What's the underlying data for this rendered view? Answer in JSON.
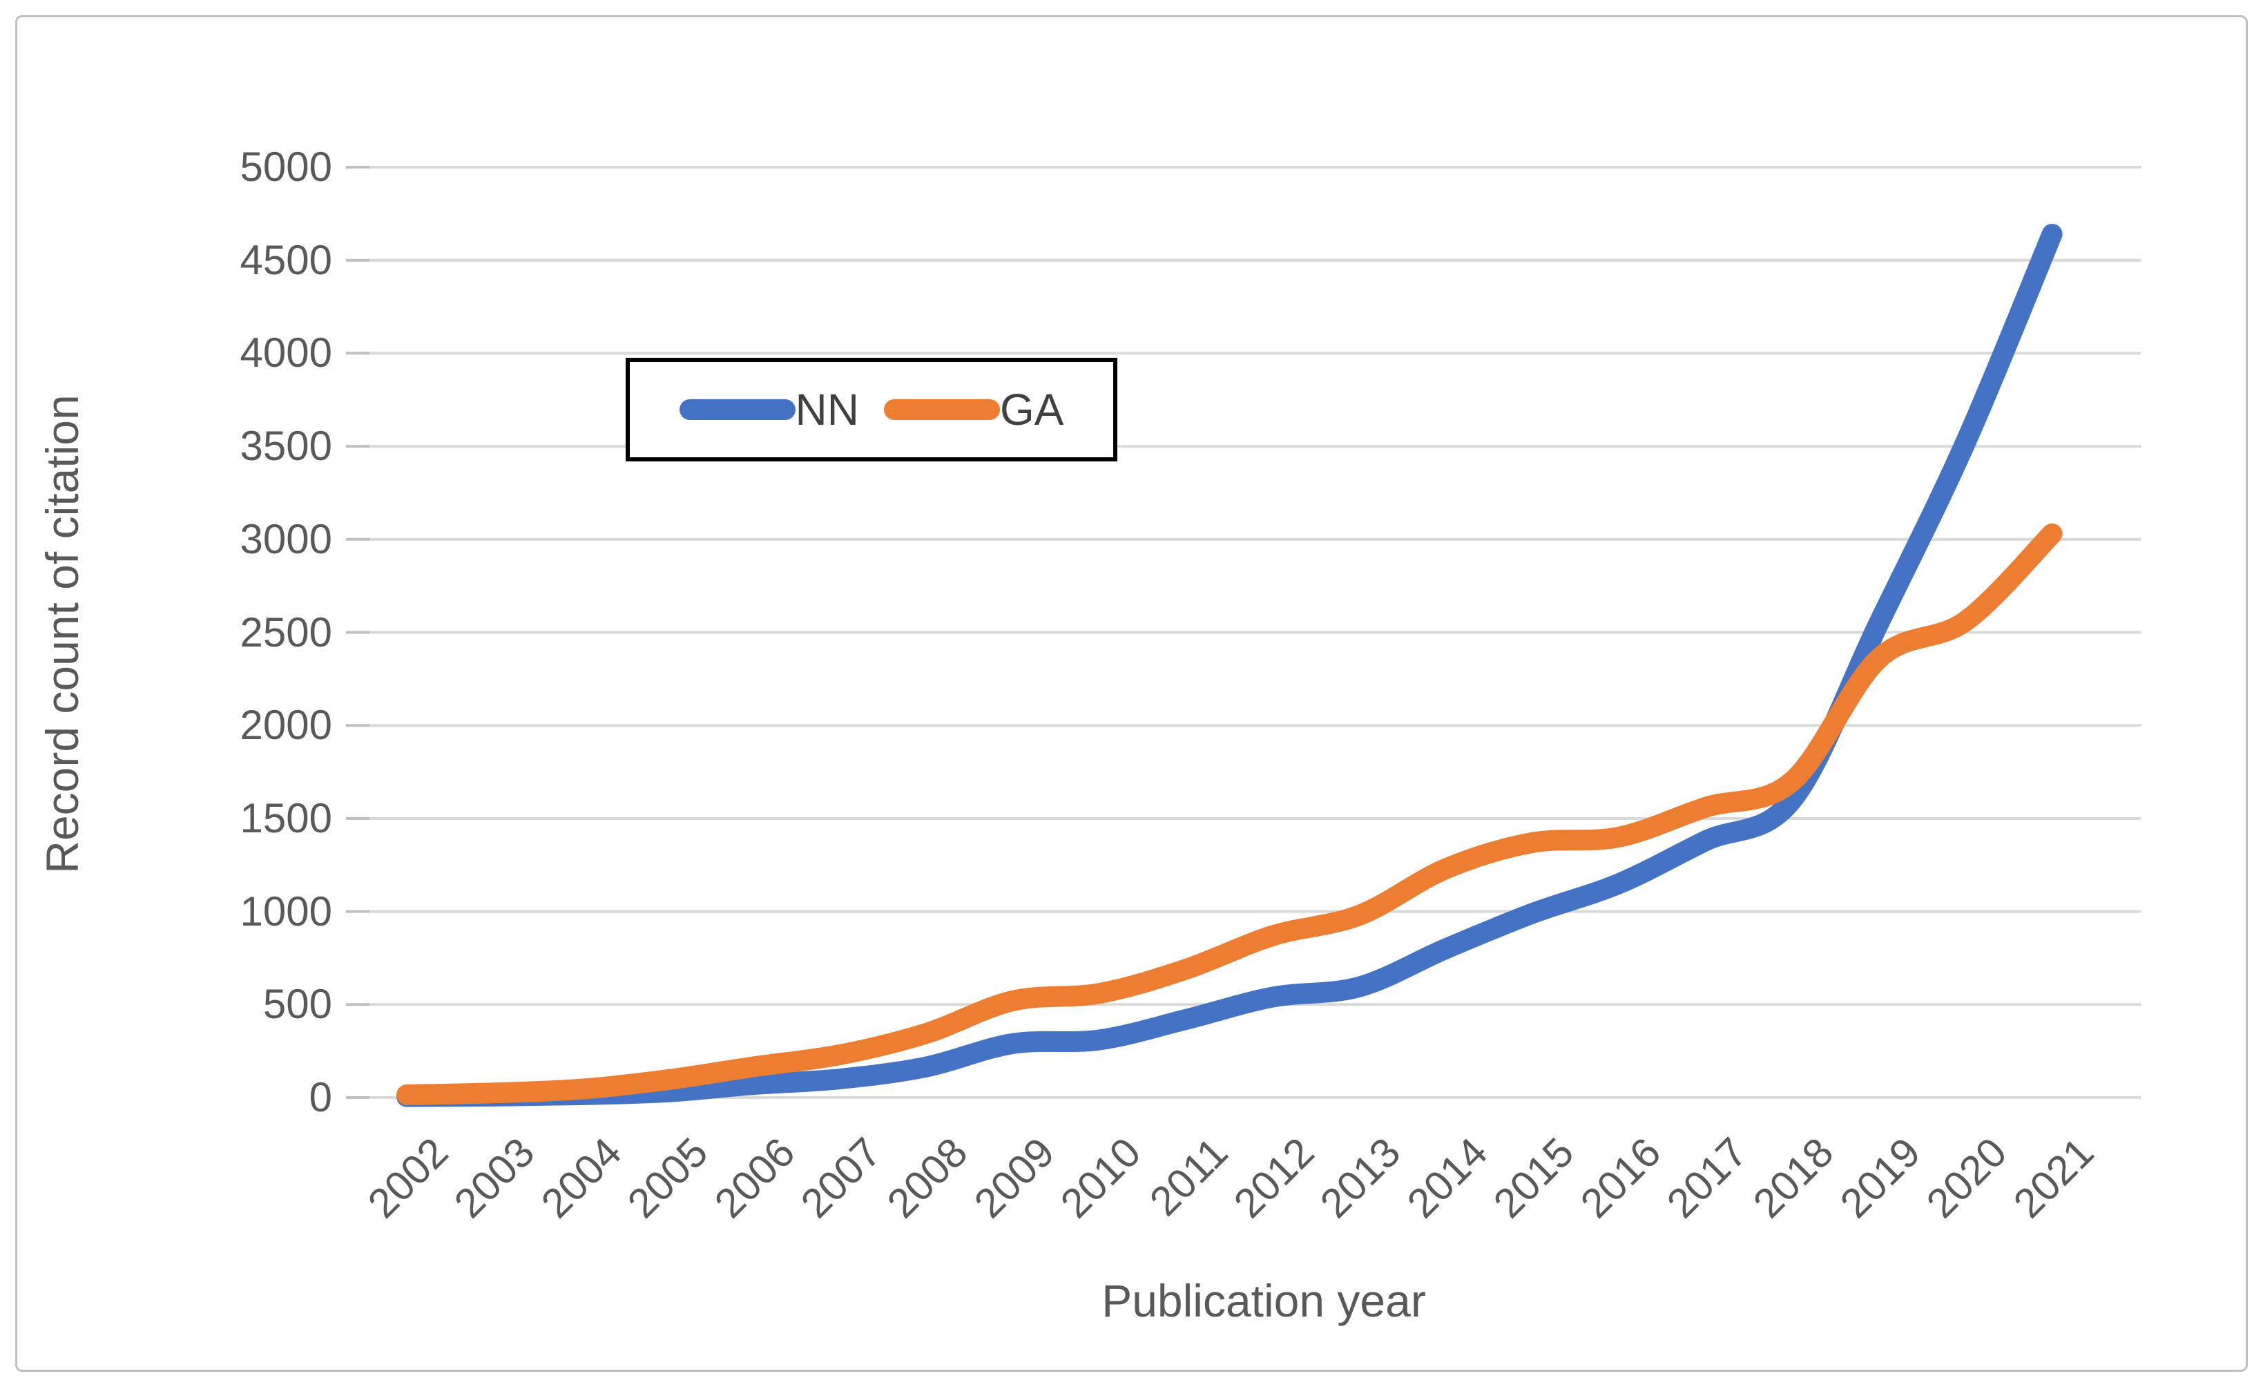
{
  "chart_data": {
    "type": "line",
    "title": "",
    "xlabel": "Publication year",
    "ylabel": "Record count of citation",
    "categories": [
      "2002",
      "2003",
      "2004",
      "2005",
      "2006",
      "2007",
      "2008",
      "2009",
      "2010",
      "2011",
      "2012",
      "2013",
      "2014",
      "2015",
      "2016",
      "2017",
      "2018",
      "2019",
      "2020",
      "2021"
    ],
    "series": [
      {
        "name": "NN",
        "color": "#4472C4",
        "values": [
          5,
          8,
          15,
          30,
          70,
          100,
          165,
          290,
          310,
          420,
          540,
          595,
          800,
          990,
          1150,
          1380,
          1600,
          2550,
          3520,
          4640
        ]
      },
      {
        "name": "GA",
        "color": "#ED7D31",
        "values": [
          15,
          25,
          45,
          95,
          165,
          230,
          345,
          520,
          560,
          690,
          870,
          980,
          1230,
          1370,
          1400,
          1560,
          1700,
          2360,
          2560,
          3030
        ]
      }
    ],
    "ylim": [
      0,
      5000
    ],
    "ytick_step": 500,
    "yticks": [
      "0",
      "500",
      "1000",
      "1500",
      "2000",
      "2500",
      "3000",
      "3500",
      "4000",
      "4500",
      "5000"
    ],
    "grid": true,
    "legend_position": "top-center",
    "line_style": "smoothed",
    "colors": {
      "gridline": "#D9D9D9",
      "tick": "#BFBFBF",
      "label": "#595959",
      "frame_border": "#BFBFBF",
      "legend_border": "#000000"
    }
  }
}
